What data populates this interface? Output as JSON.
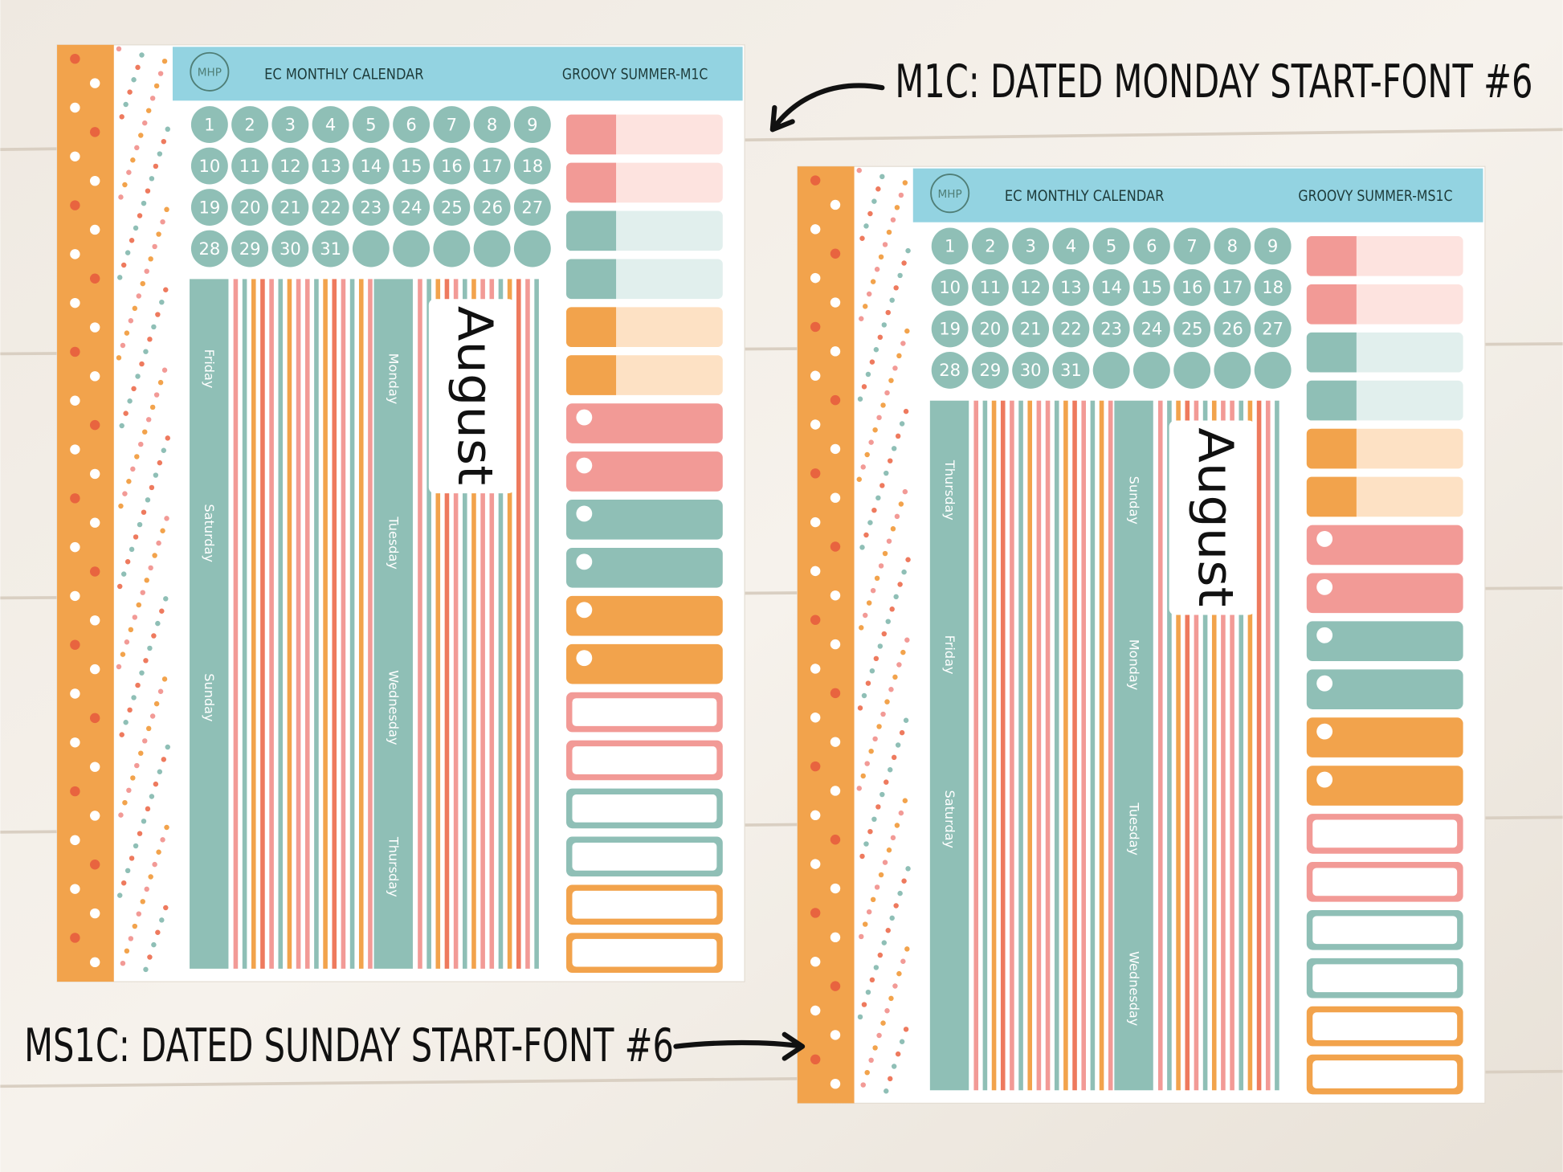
{
  "annotations": [
    {
      "text": "M1C: DATED MONDAY START-FONT #6"
    },
    {
      "text": "MS1C: DATED SUNDAY START-FONT #6"
    }
  ],
  "sheets": [
    {
      "logo": "MHP",
      "title": "EC MONTHLY CALENDAR",
      "code": "GROOVY SUMMER-M1C",
      "dates": [
        1,
        2,
        3,
        4,
        5,
        6,
        7,
        8,
        9,
        10,
        11,
        12,
        13,
        14,
        15,
        16,
        17,
        18,
        19,
        20,
        21,
        22,
        23,
        24,
        25,
        26,
        27,
        28,
        29,
        30,
        31
      ],
      "month": "August",
      "strip1": [
        "Friday",
        "Saturday",
        "Sunday"
      ],
      "strip2": [
        "Monday",
        "Tuesday",
        "Wednesday",
        "Thursday"
      ]
    },
    {
      "logo": "MHP",
      "title": "EC MONTHLY CALENDAR",
      "code": "GROOVY SUMMER-MS1C",
      "dates": [
        1,
        2,
        3,
        4,
        5,
        6,
        7,
        8,
        9,
        10,
        11,
        12,
        13,
        14,
        15,
        16,
        17,
        18,
        19,
        20,
        21,
        22,
        23,
        24,
        25,
        26,
        27,
        28,
        29,
        30,
        31
      ],
      "month": "August",
      "strip1": [
        "Thursday",
        "Friday",
        "Saturday"
      ],
      "strip2": [
        "Sunday",
        "Monday",
        "Tuesday",
        "Wednesday"
      ]
    }
  ]
}
